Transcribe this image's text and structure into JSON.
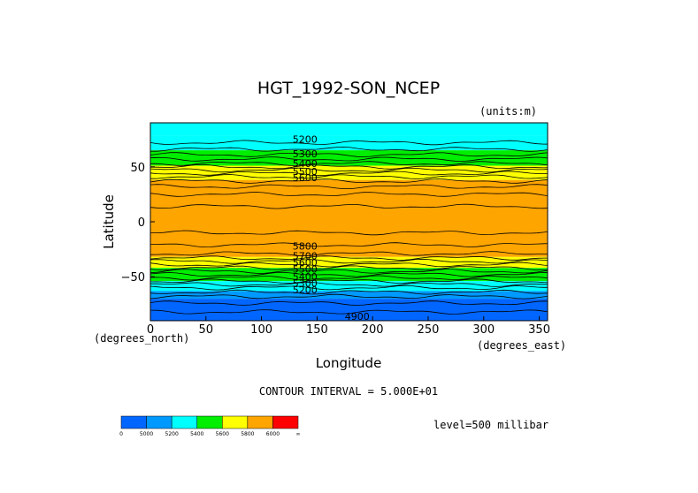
{
  "chart_data": {
    "type": "heatmap",
    "title": "HGT_1992-SON_NCEP",
    "units_label": "(units:m)",
    "xlabel": "Longitude",
    "ylabel": "Latitude",
    "x_unit_label": "(degrees_east)",
    "y_unit_label": "(degrees_north)",
    "xlim": [
      0,
      357.5
    ],
    "ylim": [
      -90,
      90
    ],
    "x_ticks": [
      0,
      50,
      100,
      150,
      200,
      250,
      300,
      350
    ],
    "y_ticks": [
      -50,
      0,
      50
    ],
    "contour_interval_text": "CONTOUR INTERVAL = 5.000E+01",
    "level_text": "level=500 millibar",
    "colorbar": {
      "boundaries": [
        "0",
        "5000",
        "5200",
        "5400",
        "5600",
        "5800",
        "6000",
        "∞"
      ],
      "colors": [
        "#0066ff",
        "#0099ff",
        "#00ffff",
        "#00ee00",
        "#ffff00",
        "#ffa500",
        "#ff0000"
      ]
    },
    "bands": [
      {
        "lat_from": 90,
        "lat_to": 78,
        "color": "#00ffff"
      },
      {
        "lat_from": 78,
        "lat_to": 65,
        "color": "#00ffff"
      },
      {
        "lat_from": 65,
        "lat_to": 51,
        "color": "#00ee00"
      },
      {
        "lat_from": 51,
        "lat_to": 38,
        "color": "#ffff00"
      },
      {
        "lat_from": 38,
        "lat_to": -32,
        "color": "#ffa500"
      },
      {
        "lat_from": -32,
        "lat_to": -42,
        "color": "#ffff00"
      },
      {
        "lat_from": -42,
        "lat_to": -54,
        "color": "#00ee00"
      },
      {
        "lat_from": -54,
        "lat_to": -63,
        "color": "#00ffff"
      },
      {
        "lat_from": -63,
        "lat_to": -70,
        "color": "#0099ff"
      },
      {
        "lat_from": -70,
        "lat_to": -90,
        "color": "#0066ff"
      }
    ],
    "contour_lats": [
      72,
      66,
      61,
      57,
      53,
      50,
      47,
      44,
      41,
      37,
      32,
      25,
      14,
      -10,
      -21,
      -29,
      -33,
      -36,
      -39,
      -42,
      -45,
      -48,
      -51,
      -54,
      -57,
      -60,
      -64,
      -68,
      -74,
      -82
    ],
    "contour_labels": [
      {
        "text": "5200",
        "lon": 128,
        "lat": 75
      },
      {
        "text": "5300",
        "lon": 128,
        "lat": 62
      },
      {
        "text": "5400",
        "lon": 128,
        "lat": 53
      },
      {
        "text": "5500",
        "lon": 128,
        "lat": 46
      },
      {
        "text": "5600",
        "lon": 128,
        "lat": 40
      },
      {
        "text": "5800",
        "lon": 128,
        "lat": -22
      },
      {
        "text": "5700",
        "lon": 128,
        "lat": -31
      },
      {
        "text": "5600",
        "lon": 128,
        "lat": -37
      },
      {
        "text": "5500",
        "lon": 128,
        "lat": -43
      },
      {
        "text": "5400",
        "lon": 128,
        "lat": -50
      },
      {
        "text": "5300",
        "lon": 128,
        "lat": -56
      },
      {
        "text": "5200",
        "lon": 128,
        "lat": -62
      },
      {
        "text": "4900",
        "lon": 175,
        "lat": -86
      }
    ]
  }
}
